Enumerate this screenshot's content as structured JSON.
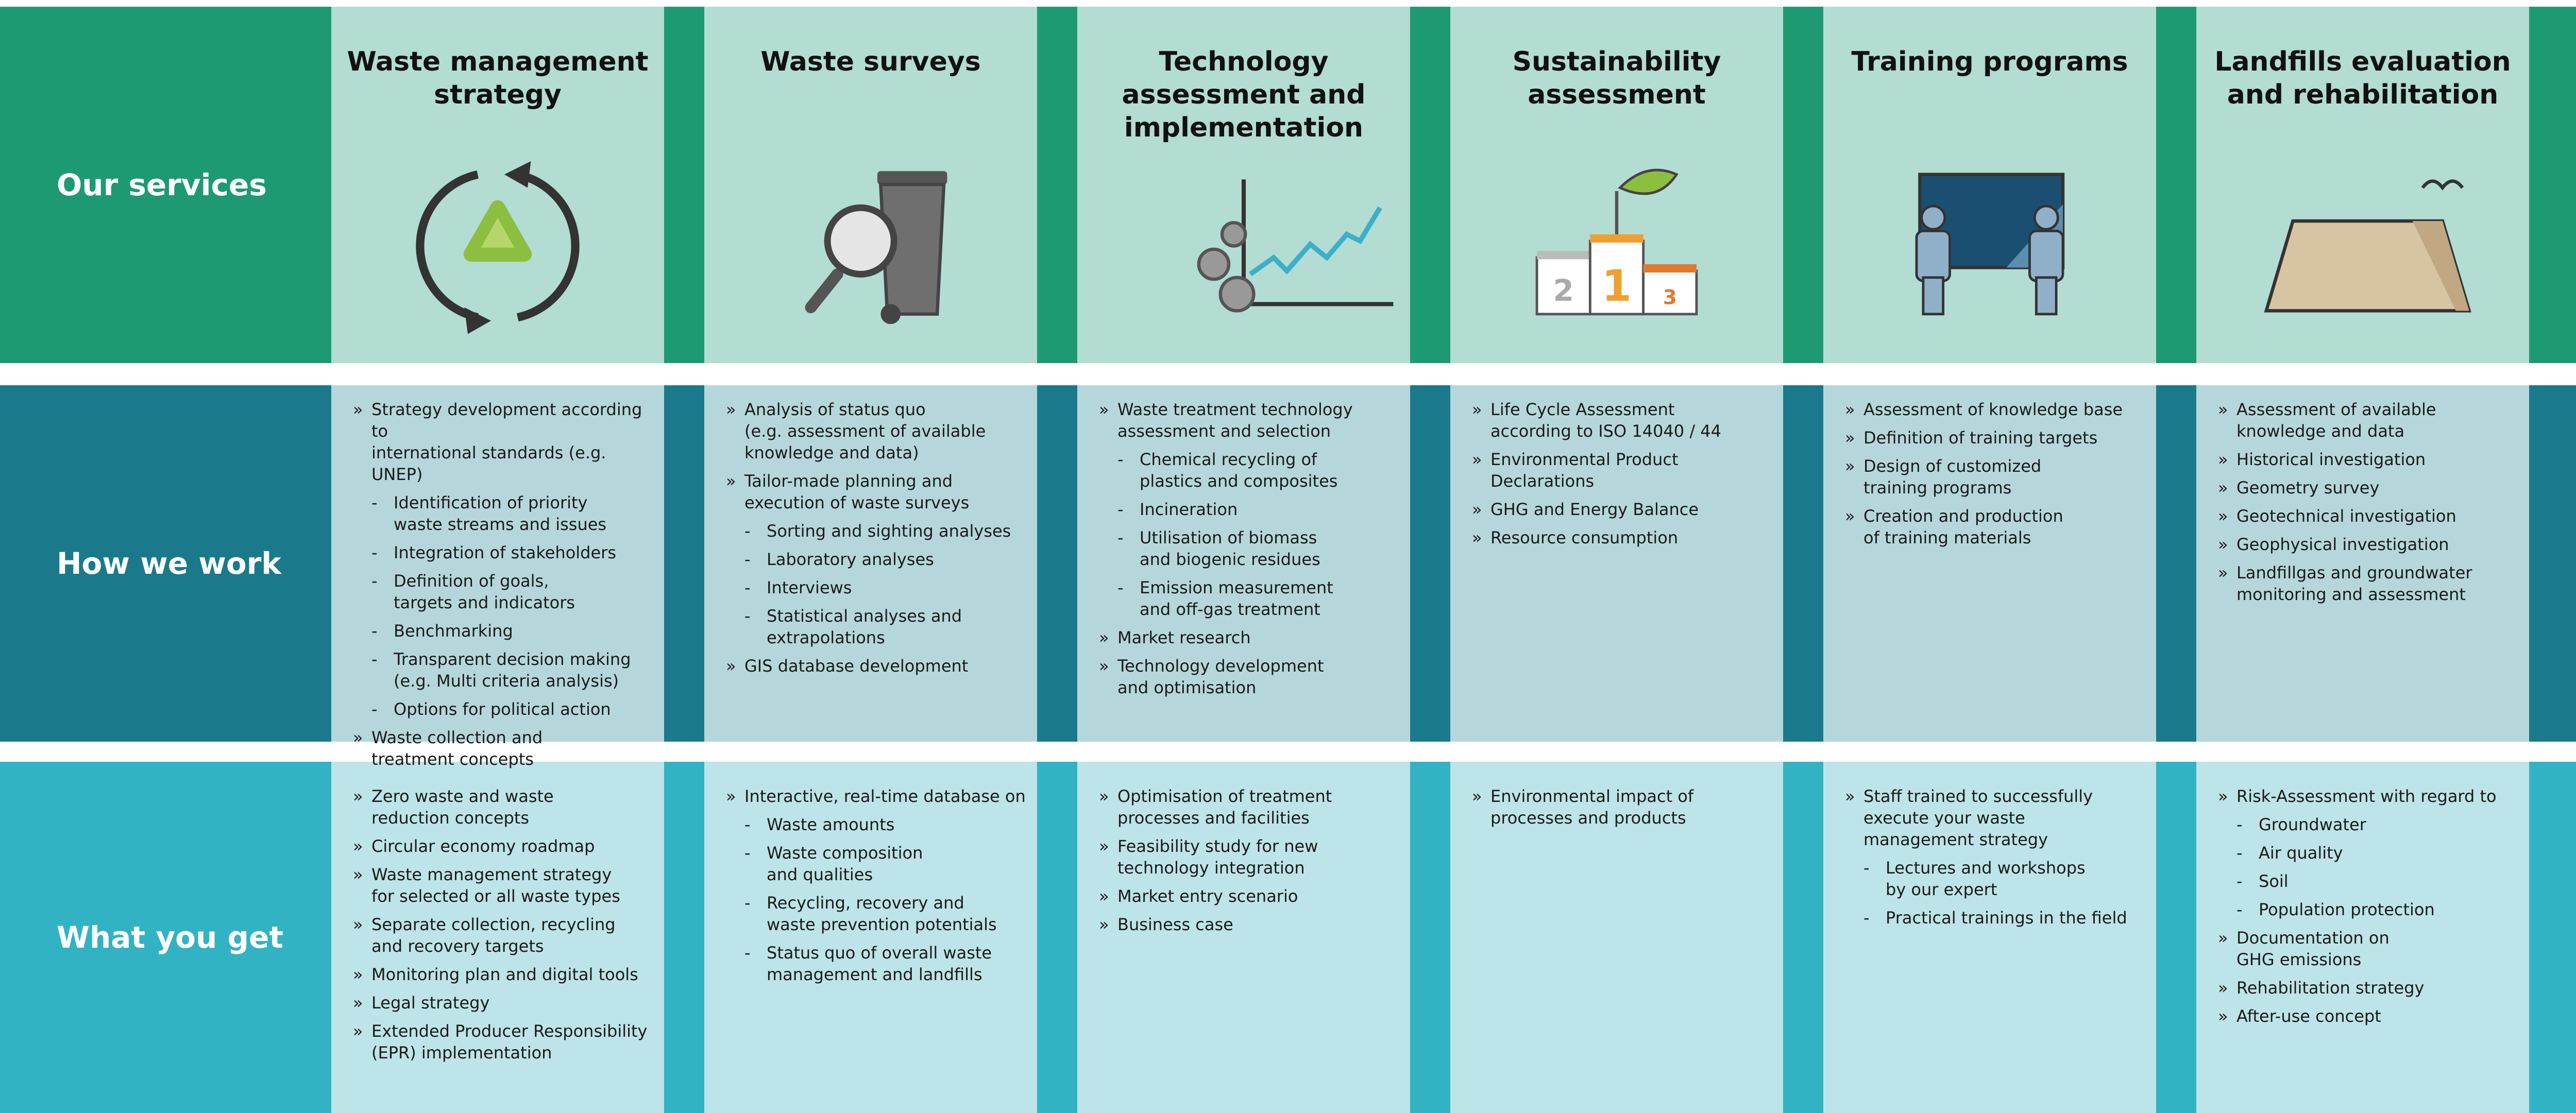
{
  "rows": [
    "Our services",
    "How we work",
    "What you get"
  ],
  "columns": [
    {
      "title": "Waste management\nstrategy",
      "how": [
        {
          "marker": "»",
          "text": "Strategy development according to\ninternational standards (e.g. UNEP)"
        },
        {
          "marker": "-",
          "text": "Identification of priority\nwaste streams and issues"
        },
        {
          "marker": "-",
          "text": "Integration of stakeholders"
        },
        {
          "marker": "-",
          "text": "Definition of goals,\ntargets and indicators"
        },
        {
          "marker": "-",
          "text": "Benchmarking"
        },
        {
          "marker": "-",
          "text": "Transparent decision making\n(e.g. Multi criteria analysis)"
        },
        {
          "marker": "-",
          "text": "Options for political action"
        },
        {
          "marker": "»",
          "text": "Waste collection and\ntreatment concepts"
        }
      ],
      "get": [
        {
          "marker": "»",
          "text": "Zero waste and waste\nreduction concepts"
        },
        {
          "marker": "»",
          "text": "Circular economy roadmap"
        },
        {
          "marker": "»",
          "text": "Waste management strategy\nfor selected or all waste types"
        },
        {
          "marker": "»",
          "text": "Separate collection, recycling\nand recovery targets"
        },
        {
          "marker": "»",
          "text": "Monitoring plan and digital tools"
        },
        {
          "marker": "»",
          "text": "Legal strategy"
        },
        {
          "marker": "»",
          "text": "Extended Producer Responsibility\n(EPR) implementation"
        }
      ]
    },
    {
      "title": "Waste surveys",
      "how": [
        {
          "marker": "»",
          "text": "Analysis of status quo\n(e.g. assessment of available\nknowledge and data)"
        },
        {
          "marker": "»",
          "text": "Tailor-made planning and\nexecution of waste surveys"
        },
        {
          "marker": "-",
          "text": "Sorting and sighting analyses"
        },
        {
          "marker": "-",
          "text": "Laboratory analyses"
        },
        {
          "marker": "-",
          "text": "Interviews"
        },
        {
          "marker": "-",
          "text": "Statistical analyses and\nextrapolations"
        },
        {
          "marker": "»",
          "text": "GIS database development"
        }
      ],
      "get": [
        {
          "marker": "»",
          "text": "Interactive, real-time database on"
        },
        {
          "marker": "-",
          "text": "Waste amounts"
        },
        {
          "marker": "-",
          "text": "Waste composition\nand qualities"
        },
        {
          "marker": "-",
          "text": "Recycling, recovery and\nwaste prevention potentials"
        },
        {
          "marker": "-",
          "text": "Status quo of overall waste\nmanagement and landfills"
        }
      ]
    },
    {
      "title": "Technology\nassessment and\nimplementation",
      "how": [
        {
          "marker": "»",
          "text": "Waste treatment technology\nassessment and selection"
        },
        {
          "marker": "-",
          "text": "Chemical recycling of\nplastics and composites"
        },
        {
          "marker": "-",
          "text": "Incineration"
        },
        {
          "marker": "-",
          "text": "Utilisation of biomass\nand biogenic residues"
        },
        {
          "marker": "-",
          "text": "Emission measurement\nand off-gas treatment"
        },
        {
          "marker": "»",
          "text": "Market research"
        },
        {
          "marker": "»",
          "text": "Technology development\nand optimisation"
        }
      ],
      "get": [
        {
          "marker": "»",
          "text": "Optimisation of treatment\nprocesses and facilities"
        },
        {
          "marker": "»",
          "text": "Feasibility study for new\ntechnology integration"
        },
        {
          "marker": "»",
          "text": "Market entry scenario"
        },
        {
          "marker": "»",
          "text": "Business case"
        }
      ]
    },
    {
      "title": "Sustainability\nassessment",
      "podium": [
        "2",
        "1",
        "3"
      ],
      "how": [
        {
          "marker": "»",
          "text": "Life Cycle Assessment\naccording to ISO 14040 / 44"
        },
        {
          "marker": "»",
          "text": "Environmental Product\nDeclarations"
        },
        {
          "marker": "»",
          "text": "GHG and Energy Balance"
        },
        {
          "marker": "»",
          "text": "Resource consumption"
        }
      ],
      "get": [
        {
          "marker": "»",
          "text": "Environmental impact of\nprocesses and products"
        }
      ]
    },
    {
      "title": "Training programs",
      "how": [
        {
          "marker": "»",
          "text": "Assessment of knowledge base"
        },
        {
          "marker": "»",
          "text": "Definition of training targets"
        },
        {
          "marker": "»",
          "text": "Design of customized\ntraining programs"
        },
        {
          "marker": "»",
          "text": "Creation and production\nof training materials"
        }
      ],
      "get": [
        {
          "marker": "»",
          "text": "Staff trained to successfully\nexecute your waste\nmanagement strategy"
        },
        {
          "marker": "-",
          "text": "Lectures and workshops\nby our expert"
        },
        {
          "marker": "-",
          "text": "Practical trainings in the field"
        }
      ]
    },
    {
      "title": "Landfills evaluation\nand rehabilitation",
      "how": [
        {
          "marker": "»",
          "text": "Assessment of available\nknowledge and data"
        },
        {
          "marker": "»",
          "text": "Historical investigation"
        },
        {
          "marker": "»",
          "text": "Geometry survey"
        },
        {
          "marker": "»",
          "text": "Geotechnical investigation"
        },
        {
          "marker": "»",
          "text": "Geophysical investigation"
        },
        {
          "marker": "»",
          "text": "Landfillgas and groundwater\nmonitoring and assessment"
        }
      ],
      "get": [
        {
          "marker": "»",
          "text": "Risk-Assessment with regard to"
        },
        {
          "marker": "-",
          "text": "Groundwater"
        },
        {
          "marker": "-",
          "text": "Air quality"
        },
        {
          "marker": "-",
          "text": "Soil"
        },
        {
          "marker": "-",
          "text": "Population protection"
        },
        {
          "marker": "»",
          "text": "Documentation on\nGHG emissions"
        },
        {
          "marker": "»",
          "text": "Rehabilitation strategy"
        },
        {
          "marker": "»",
          "text": "After-use concept"
        }
      ]
    }
  ]
}
